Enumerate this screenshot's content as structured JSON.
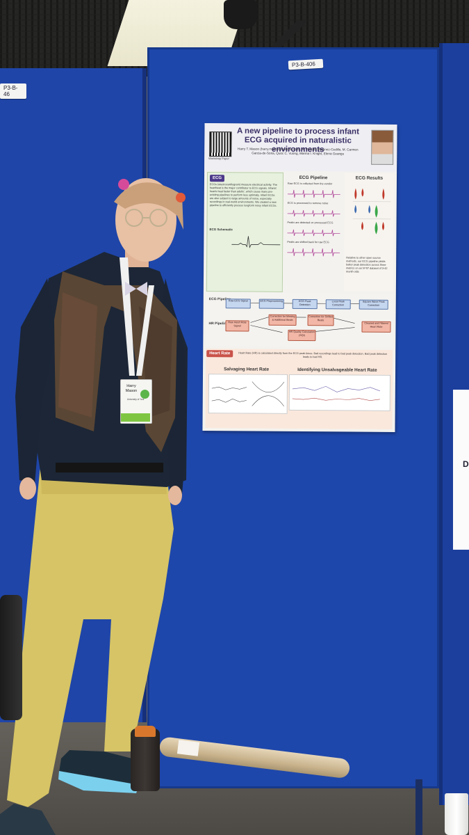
{
  "scene": {
    "description_tags": {
      "stand_labels": [
        "P3-B-46",
        "P3-B-406"
      ]
    }
  },
  "poster": {
    "qr_caption": "Workshop Paper",
    "title": "A new pipeline to process infant ECG acquired in naturalistic environments",
    "authors": "Harry T. Mason (harry.mason@outlook.com), A. Priscilla Martinez-Cedillo, M. Carmen Garcia-de-Soria, Quoc C. Vuong, Marina I. Knight, Elena Geangu",
    "ecg": {
      "label": "ECG",
      "text": "ECGs (electrocardiogram) measure electrical activity. The heartbeat is the major contributor to ECG signals. Infants' hearts beat faster than adults', which cause many pre-existing pipelines to perform less optimally. Infant ECGs are also subject to large amounts of noise, especially recordings in real-world environments. We created a new pipeline to efficiently process longform noisy infant ECGs.",
      "schematic_label": "ECG Schematic"
    },
    "pipeline": {
      "label": "ECG Pipeline",
      "steps": [
        "Raw ECG is collected from the vendor",
        "ECG is processed to remove noise",
        "Peaks are detected on processed ECG",
        "Peaks are shifted back for raw ECG"
      ]
    },
    "results": {
      "label": "ECG Results",
      "text": "Relative to other open source methods, our ECG pipeline yields better peak detection across three metrics on an N=97 dataset of 3-42 month olds"
    },
    "flow": {
      "ecg_label": "ECG Pipeline",
      "hr_label": "HR Pipeline",
      "ecg_steps": [
        "Raw ECG Signal",
        "ECG Preprocessing",
        "ECG Peak Detection",
        "Local Peak Correction",
        "Square Wave Peak Correction"
      ],
      "hr_steps": [
        "Raw Heart Rate Signal",
        "Correction for Missing & Additional Beats",
        "Correction for Shifted Beats",
        "HR Quality Calculation (SQI)",
        "Cleaned and Filtered Heart Rate"
      ]
    },
    "heart_rate": {
      "label": "Heart Rate",
      "text": "Heart Rate (HR) is calculated directly from the ECG peak times. Bad recordings lead to bad peak detection. Bad peak detection leads to bad HR.",
      "salvaging_label": "Salvaging Heart Rate",
      "unsalvageable_label": "Identifying Unsalvageable Heart Rate"
    }
  },
  "badge": {
    "name": "Harry Mason",
    "org": "University of York"
  }
}
